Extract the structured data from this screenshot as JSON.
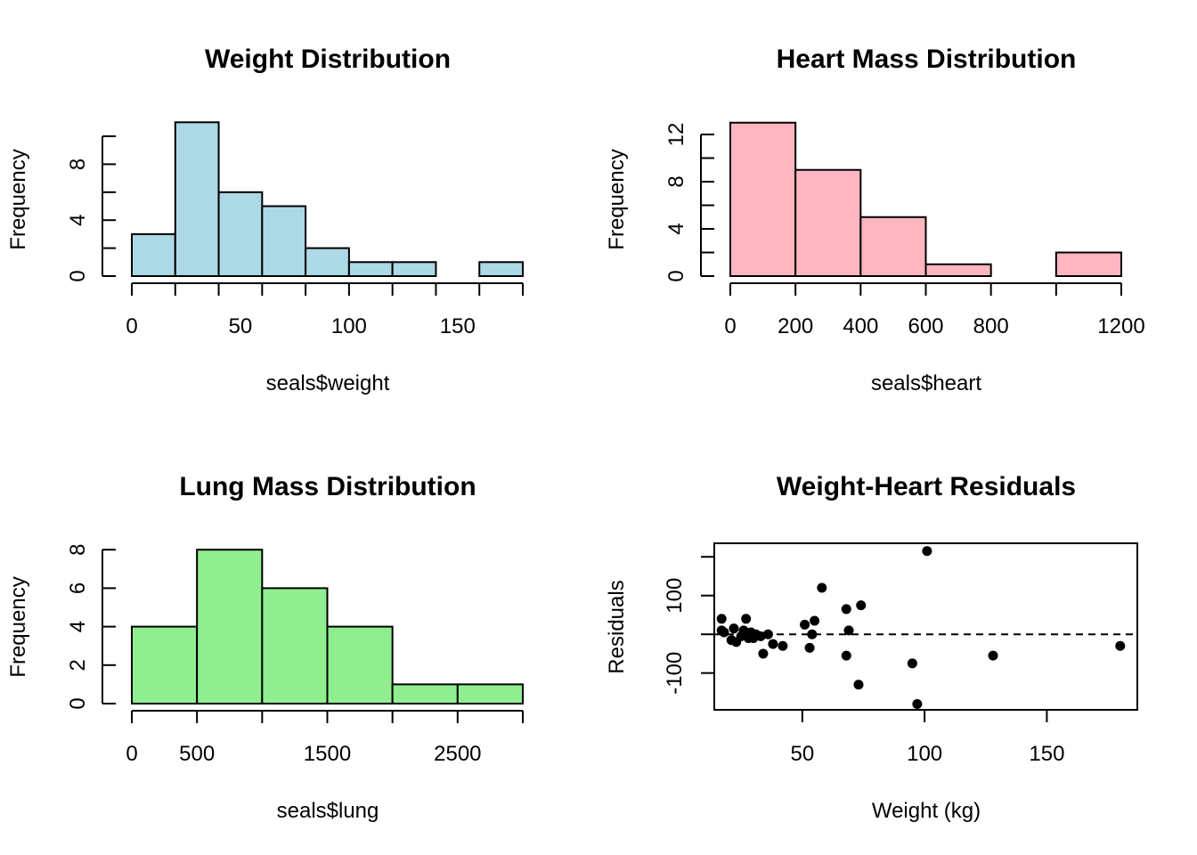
{
  "chart_data": [
    {
      "type": "bar",
      "subtype": "histogram",
      "title": "Weight Distribution",
      "xlabel": "seals$weight",
      "ylabel": "Frequency",
      "bins": [
        [
          0,
          20
        ],
        [
          20,
          40
        ],
        [
          40,
          60
        ],
        [
          60,
          80
        ],
        [
          80,
          100
        ],
        [
          100,
          120
        ],
        [
          120,
          140
        ],
        [
          140,
          160
        ],
        [
          160,
          180
        ]
      ],
      "values": [
        3,
        11,
        6,
        5,
        2,
        1,
        1,
        0,
        1
      ],
      "fill": "#ADD8E6",
      "xticks": [
        0,
        50,
        100,
        150
      ],
      "yticks": [
        0,
        4,
        8
      ],
      "ylim": [
        0,
        10
      ],
      "grid": false
    },
    {
      "type": "bar",
      "subtype": "histogram",
      "title": "Heart Mass Distribution",
      "xlabel": "seals$heart",
      "ylabel": "Frequency",
      "bins": [
        [
          0,
          200
        ],
        [
          200,
          400
        ],
        [
          400,
          600
        ],
        [
          600,
          800
        ],
        [
          800,
          1000
        ],
        [
          1000,
          1200
        ]
      ],
      "values": [
        13,
        9,
        5,
        1,
        0,
        2
      ],
      "fill": "#FFB6C1",
      "xticks": [
        0,
        200,
        400,
        600,
        800,
        1200
      ],
      "yticks": [
        0,
        4,
        8,
        12
      ],
      "ylim": [
        0,
        12
      ],
      "grid": false
    },
    {
      "type": "bar",
      "subtype": "histogram",
      "title": "Lung Mass Distribution",
      "xlabel": "seals$lung",
      "ylabel": "Frequency",
      "bins": [
        [
          0,
          500
        ],
        [
          500,
          1000
        ],
        [
          1000,
          1500
        ],
        [
          1500,
          2000
        ],
        [
          2000,
          2500
        ],
        [
          2500,
          3000
        ]
      ],
      "values": [
        4,
        8,
        6,
        4,
        1,
        1
      ],
      "fill": "#90EE90",
      "xticks": [
        0,
        500,
        1500,
        2500
      ],
      "yticks": [
        0,
        2,
        4,
        6,
        8
      ],
      "ylim": [
        0,
        8
      ],
      "grid": false
    },
    {
      "type": "scatter",
      "title": "Weight-Heart Residuals",
      "xlabel": "Weight (kg)",
      "ylabel": "Residuals",
      "xlim": [
        14,
        187
      ],
      "ylim": [
        -195,
        235
      ],
      "xticks": [
        50,
        100,
        150
      ],
      "yticks": [
        -100,
        100
      ],
      "hline": 0,
      "x": [
        17,
        17,
        18,
        21,
        22,
        23,
        25,
        26,
        27,
        28,
        28,
        29,
        30,
        31,
        33,
        34,
        36,
        38,
        42,
        51,
        53,
        54,
        55,
        58,
        68,
        68,
        69,
        73,
        74,
        95,
        97,
        101,
        128,
        180
      ],
      "y": [
        40,
        10,
        5,
        -15,
        15,
        -20,
        -5,
        10,
        40,
        0,
        -10,
        5,
        -10,
        0,
        -5,
        -50,
        0,
        -25,
        -30,
        25,
        -35,
        0,
        35,
        120,
        65,
        -55,
        10,
        -130,
        75,
        -75,
        -180,
        215,
        -55,
        -30
      ],
      "point_color": "#000000",
      "grid": false
    }
  ]
}
